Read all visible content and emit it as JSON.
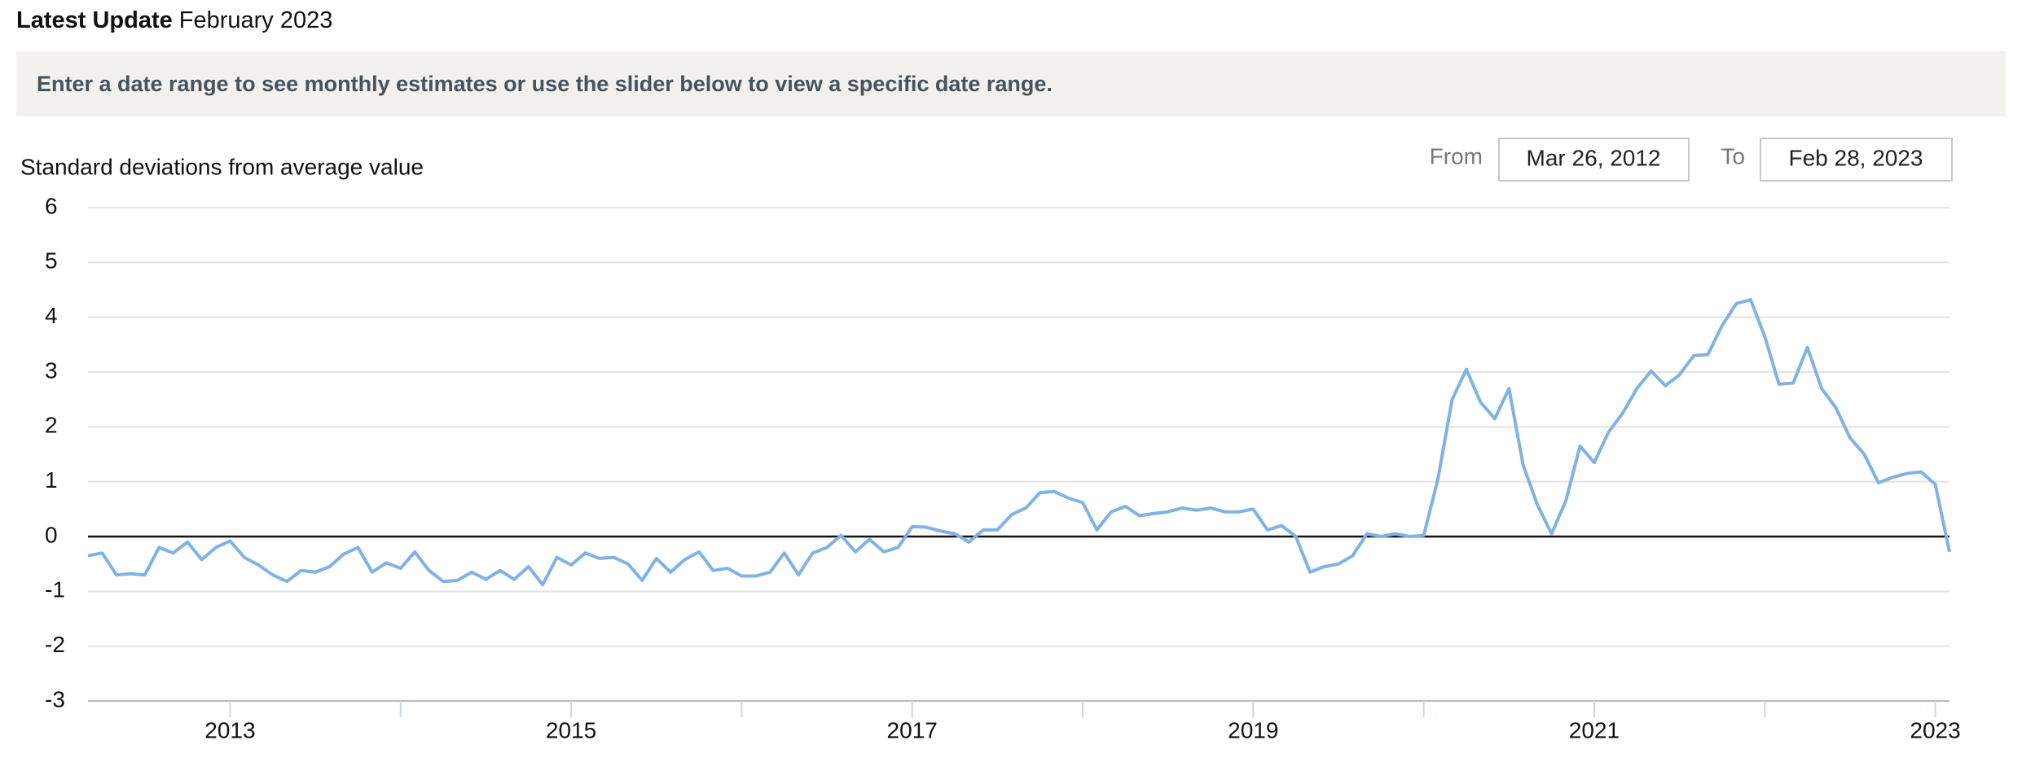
{
  "header": {
    "label": "Latest Update",
    "value": "February 2023"
  },
  "instructions": "Enter a date range to see monthly estimates or use the slider below to view a specific date range.",
  "date_range": {
    "from_label": "From",
    "from": "Mar 26, 2012",
    "to_label": "To",
    "to": "Feb 28, 2023"
  },
  "chart_data": {
    "type": "line",
    "y_label": "Standard deviations from average value",
    "color": "#7fb2e5",
    "grid": true,
    "zero_line": true,
    "xlim": [
      "2012-03",
      "2023-02"
    ],
    "ylim": [
      -3,
      6
    ],
    "yticks": [
      -3,
      -2,
      -1,
      0,
      1,
      2,
      3,
      4,
      5,
      6
    ],
    "xticks": [
      2013,
      2015,
      2017,
      2019,
      2021,
      2023
    ],
    "xminorticks": [
      2014,
      2016,
      2018,
      2020,
      2022
    ],
    "x": [
      "2012-03",
      "2012-04",
      "2012-05",
      "2012-06",
      "2012-07",
      "2012-08",
      "2012-09",
      "2012-10",
      "2012-11",
      "2012-12",
      "2013-01",
      "2013-02",
      "2013-03",
      "2013-04",
      "2013-05",
      "2013-06",
      "2013-07",
      "2013-08",
      "2013-09",
      "2013-10",
      "2013-11",
      "2013-12",
      "2014-01",
      "2014-02",
      "2014-03",
      "2014-04",
      "2014-05",
      "2014-06",
      "2014-07",
      "2014-08",
      "2014-09",
      "2014-10",
      "2014-11",
      "2014-12",
      "2015-01",
      "2015-02",
      "2015-03",
      "2015-04",
      "2015-05",
      "2015-06",
      "2015-07",
      "2015-08",
      "2015-09",
      "2015-10",
      "2015-11",
      "2015-12",
      "2016-01",
      "2016-02",
      "2016-03",
      "2016-04",
      "2016-05",
      "2016-06",
      "2016-07",
      "2016-08",
      "2016-09",
      "2016-10",
      "2016-11",
      "2016-12",
      "2017-01",
      "2017-02",
      "2017-03",
      "2017-04",
      "2017-05",
      "2017-06",
      "2017-07",
      "2017-08",
      "2017-09",
      "2017-10",
      "2017-11",
      "2017-12",
      "2018-01",
      "2018-02",
      "2018-03",
      "2018-04",
      "2018-05",
      "2018-06",
      "2018-07",
      "2018-08",
      "2018-09",
      "2018-10",
      "2018-11",
      "2018-12",
      "2019-01",
      "2019-02",
      "2019-03",
      "2019-04",
      "2019-05",
      "2019-06",
      "2019-07",
      "2019-08",
      "2019-09",
      "2019-10",
      "2019-11",
      "2019-12",
      "2020-01",
      "2020-02",
      "2020-03",
      "2020-04",
      "2020-05",
      "2020-06",
      "2020-07",
      "2020-08",
      "2020-09",
      "2020-10",
      "2020-11",
      "2020-12",
      "2021-01",
      "2021-02",
      "2021-03",
      "2021-04",
      "2021-05",
      "2021-06",
      "2021-07",
      "2021-08",
      "2021-09",
      "2021-10",
      "2021-11",
      "2021-12",
      "2022-01",
      "2022-02",
      "2022-03",
      "2022-04",
      "2022-05",
      "2022-06",
      "2022-07",
      "2022-08",
      "2022-09",
      "2022-10",
      "2022-11",
      "2022-12",
      "2023-01",
      "2023-02"
    ],
    "values": [
      -0.35,
      -0.3,
      -0.7,
      -0.68,
      -0.7,
      -0.2,
      -0.3,
      -0.1,
      -0.42,
      -0.2,
      -0.08,
      -0.38,
      -0.52,
      -0.7,
      -0.82,
      -0.62,
      -0.65,
      -0.55,
      -0.32,
      -0.2,
      -0.65,
      -0.48,
      -0.58,
      -0.28,
      -0.62,
      -0.82,
      -0.8,
      -0.65,
      -0.78,
      -0.62,
      -0.78,
      -0.55,
      -0.88,
      -0.38,
      -0.52,
      -0.3,
      -0.4,
      -0.38,
      -0.5,
      -0.8,
      -0.4,
      -0.65,
      -0.42,
      -0.28,
      -0.62,
      -0.58,
      -0.72,
      -0.72,
      -0.65,
      -0.3,
      -0.7,
      -0.3,
      -0.2,
      0.02,
      -0.28,
      -0.05,
      -0.28,
      -0.2,
      0.18,
      0.17,
      0.1,
      0.05,
      -0.1,
      0.12,
      0.12,
      0.4,
      0.52,
      0.8,
      0.82,
      0.7,
      0.62,
      0.12,
      0.45,
      0.55,
      0.38,
      0.42,
      0.45,
      0.52,
      0.48,
      0.52,
      0.45,
      0.45,
      0.5,
      0.12,
      0.2,
      0.0,
      -0.65,
      -0.55,
      -0.5,
      -0.35,
      0.05,
      0.0,
      0.05,
      0.0,
      0.02,
      1.05,
      2.5,
      3.05,
      2.45,
      2.15,
      2.7,
      1.3,
      0.58,
      0.05,
      0.65,
      1.65,
      1.35,
      1.9,
      2.25,
      2.7,
      3.02,
      2.75,
      2.95,
      3.3,
      3.32,
      3.85,
      4.25,
      4.32,
      3.65,
      2.78,
      2.8,
      3.45,
      2.7,
      2.35,
      1.8,
      1.5,
      0.98,
      1.08,
      1.15,
      1.18,
      0.95,
      -0.28
    ]
  }
}
